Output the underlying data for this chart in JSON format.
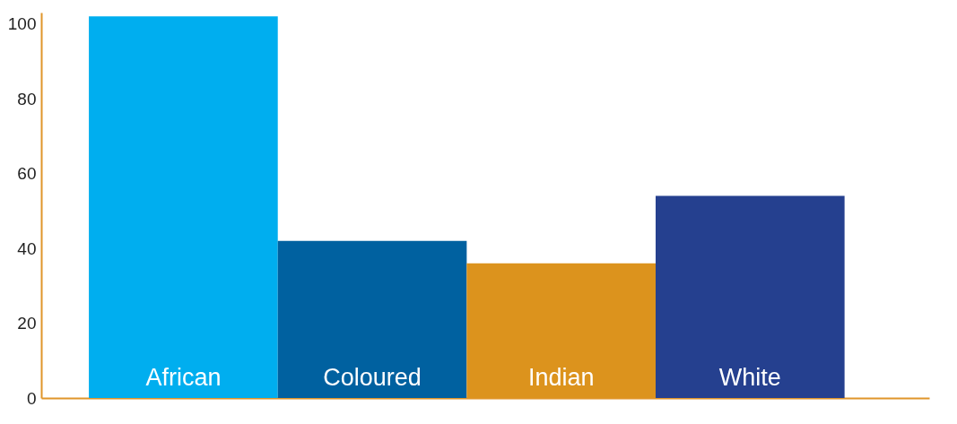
{
  "chart_data": {
    "type": "bar",
    "categories": [
      "African",
      "Coloured",
      "Indian",
      "White"
    ],
    "values": [
      102,
      42,
      36,
      54
    ],
    "colors": [
      "#00aeef",
      "#0061a0",
      "#dc931d",
      "#25408f"
    ],
    "ylim": [
      0,
      103
    ],
    "yticks": [
      0,
      20,
      40,
      60,
      80,
      100
    ],
    "grid": false
  }
}
